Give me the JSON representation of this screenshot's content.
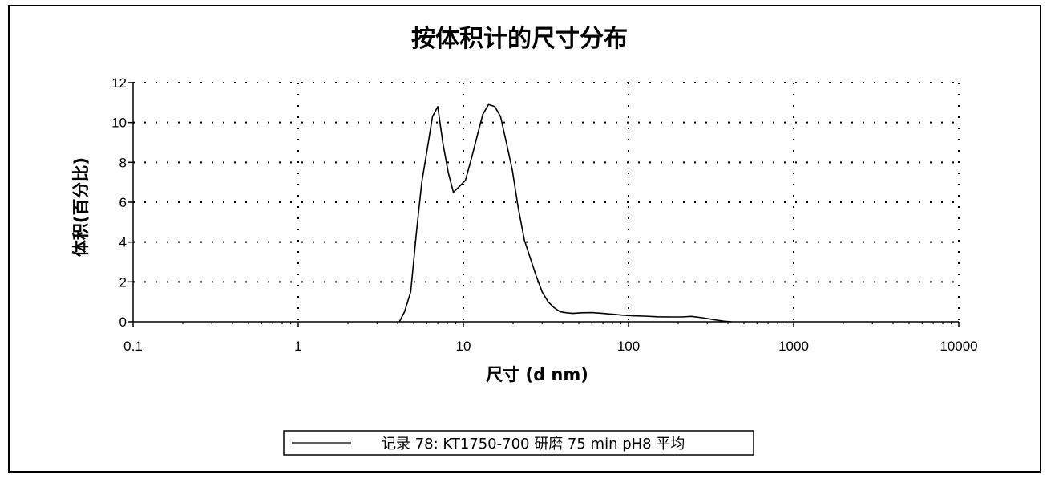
{
  "chart_data": {
    "type": "line",
    "title": "按体积计的尺寸分布",
    "xlabel": "尺寸 (d nm)",
    "ylabel": "体积(百分比)",
    "x_scale": "log",
    "xlim": [
      0.1,
      10000
    ],
    "ylim": [
      0,
      12
    ],
    "x_ticks": [
      0.1,
      1,
      10,
      100,
      1000,
      10000
    ],
    "x_tick_labels": [
      "0.1",
      "1",
      "10",
      "100",
      "1000",
      "10000"
    ],
    "y_ticks": [
      0,
      2,
      4,
      6,
      8,
      10,
      12
    ],
    "y_tick_labels": [
      "0",
      "2",
      "4",
      "6",
      "8",
      "10",
      "12"
    ],
    "grid": true,
    "legend_position": "bottom",
    "series": [
      {
        "name": "记录 78: KT1750-700 研磨 75 min pH8 平均",
        "color": "#000000",
        "x": [
          4.1,
          4.4,
          4.8,
          5.2,
          5.6,
          6.0,
          6.5,
          7.0,
          7.5,
          8.1,
          8.7,
          9.5,
          10.3,
          11.2,
          12.1,
          13.1,
          14.2,
          15.5,
          16.8,
          18.2,
          19.8,
          21.5,
          23.4,
          25.4,
          27.6,
          30,
          32.6,
          35.5,
          38.6,
          42,
          46,
          52,
          60,
          70,
          80,
          92,
          106,
          125,
          150,
          180,
          210,
          240,
          280,
          330,
          380,
          420
        ],
        "y": [
          0,
          0.5,
          1.5,
          4.5,
          7.0,
          8.5,
          10.3,
          10.8,
          9.0,
          7.5,
          6.5,
          6.8,
          7.1,
          8.2,
          9.3,
          10.4,
          10.9,
          10.8,
          10.3,
          9.0,
          7.6,
          5.7,
          4.1,
          3.2,
          2.3,
          1.5,
          1.0,
          0.7,
          0.5,
          0.45,
          0.42,
          0.45,
          0.46,
          0.42,
          0.38,
          0.33,
          0.3,
          0.28,
          0.25,
          0.24,
          0.24,
          0.27,
          0.2,
          0.1,
          0.03,
          0
        ]
      }
    ]
  }
}
